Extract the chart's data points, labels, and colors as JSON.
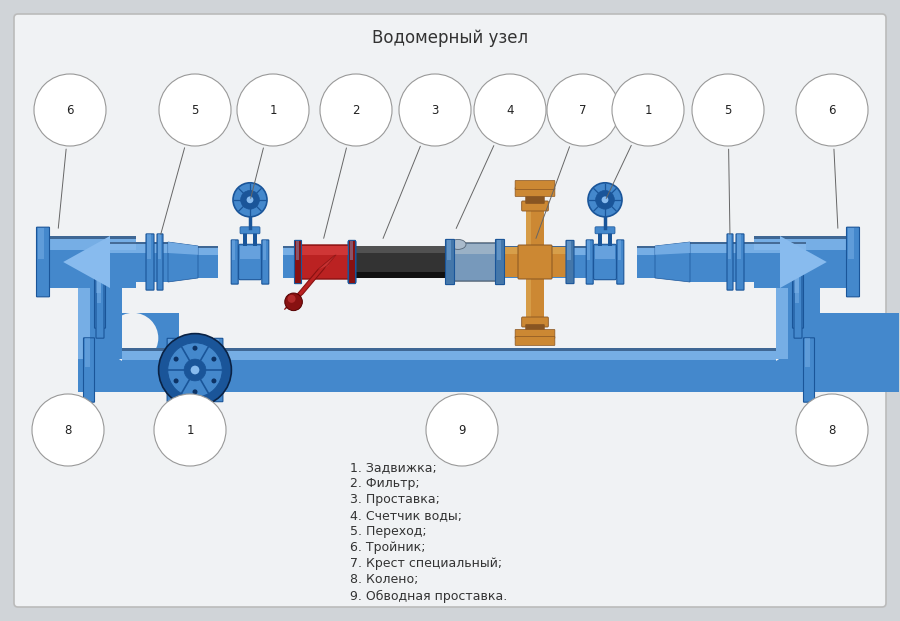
{
  "title": "Водомерный узел",
  "title_fontsize": 12,
  "bg_color": "#d0d4d8",
  "panel_facecolor": "#f0f2f4",
  "pipe_hi": "#88bbee",
  "pipe_mid": "#4488cc",
  "pipe_dark": "#1a5599",
  "pipe_shadow": "#0d3366",
  "pipe_edge": "#0a2244",
  "red_light": "#dd4444",
  "red_mid": "#bb2222",
  "red_dark": "#881111",
  "gold_light": "#ddaa55",
  "gold_mid": "#cc8833",
  "gold_dark": "#885522",
  "black_light": "#666666",
  "black_mid": "#333333",
  "black_dark": "#111111",
  "label_fc": "white",
  "label_ec": "#999999",
  "legend_items": [
    "1. Задвижка;",
    "2. Фильтр;",
    "3. Проставка;",
    "4. Счетчик воды;",
    "5. Переход;",
    "6. Тройник;",
    "7. Крест специальный;",
    "8. Колено;",
    "9. Обводная проставка."
  ]
}
